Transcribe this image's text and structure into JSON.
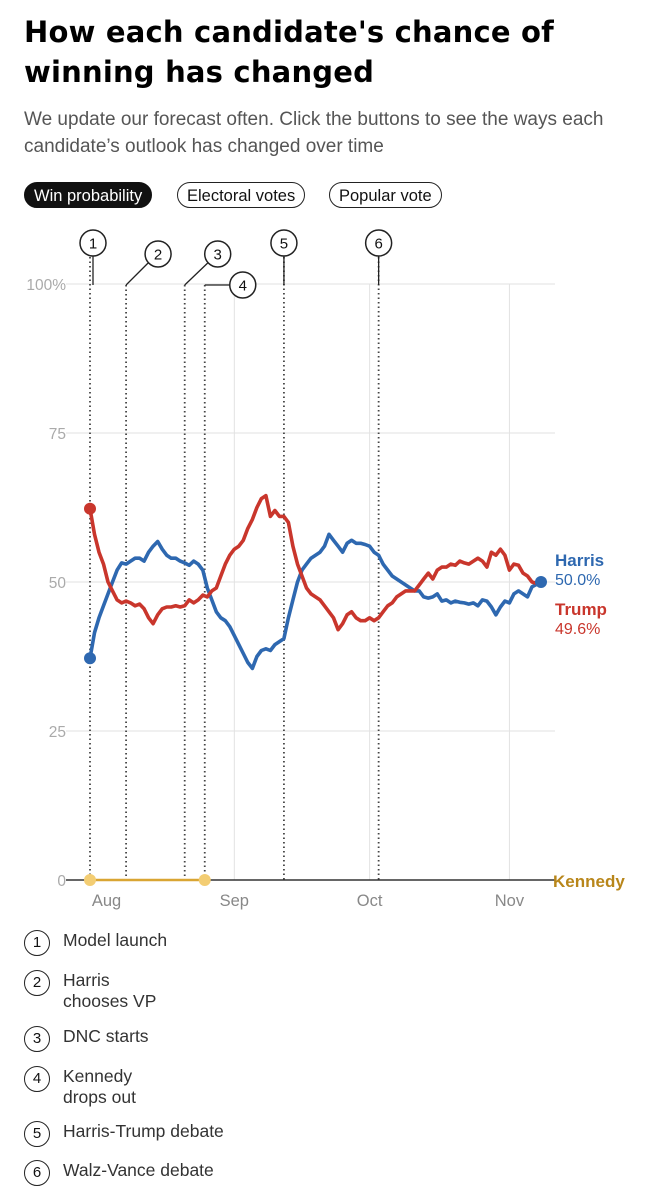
{
  "header": {
    "title": "How each candidate's chance of winning has changed",
    "subtitle": "We update our forecast often. Click the buttons to see the ways each candidate’s outlook has changed over time"
  },
  "tabs": [
    {
      "label": "Win probability",
      "active": true
    },
    {
      "label": "Electoral votes",
      "active": false
    },
    {
      "label": "Popular vote",
      "active": false
    }
  ],
  "chart_data": {
    "type": "line",
    "title": "How each candidate's chance of winning has changed",
    "x_unit": "days since Jul 31",
    "xlim": [
      0,
      104
    ],
    "ylim": [
      0,
      100
    ],
    "y_ticks": [
      {
        "value": 0,
        "label": "0"
      },
      {
        "value": 25,
        "label": "25"
      },
      {
        "value": 50,
        "label": "50"
      },
      {
        "value": 75,
        "label": "75"
      },
      {
        "value": 100,
        "label": "100%"
      }
    ],
    "x_ticks": [
      {
        "value": 1,
        "label": "Aug"
      },
      {
        "value": 32,
        "label": "Sep"
      },
      {
        "value": 62,
        "label": "Oct"
      },
      {
        "value": 93,
        "label": "Nov"
      }
    ],
    "grid": true,
    "series": [
      {
        "name": "Harris",
        "color": "#2e68b0",
        "end_label": "50.0%",
        "x": [
          0,
          1,
          2,
          3,
          4,
          5,
          6,
          7,
          8,
          9,
          10,
          11,
          12,
          13,
          14,
          15,
          16,
          17,
          18,
          19,
          20,
          21,
          22,
          23,
          24,
          25,
          26,
          27,
          28,
          29,
          30,
          31,
          32,
          33,
          34,
          35,
          36,
          37,
          38,
          39,
          40,
          41,
          42,
          43,
          44,
          45,
          46,
          47,
          48,
          49,
          50,
          51,
          52,
          53,
          54,
          55,
          56,
          57,
          58,
          59,
          60,
          61,
          62,
          63,
          64,
          65,
          66,
          67,
          68,
          69,
          70,
          71,
          72,
          73,
          74,
          75,
          76,
          77,
          78,
          79,
          80,
          81,
          82,
          83,
          84,
          85,
          86,
          87,
          88,
          89,
          90,
          91,
          92,
          93,
          94,
          95,
          96,
          97,
          98,
          99,
          100
        ],
        "values": [
          37.2,
          41.5,
          44,
          46,
          48,
          50,
          52,
          53.2,
          53,
          53.5,
          54,
          54,
          53.5,
          55,
          56,
          56.8,
          55.5,
          54.5,
          54,
          54,
          53.5,
          53.2,
          52.8,
          53.5,
          53,
          52,
          49,
          47,
          45,
          44,
          43.5,
          42.5,
          41,
          39.5,
          38,
          36.5,
          35.5,
          37.5,
          38.5,
          38.8,
          38.5,
          39.5,
          40,
          40.5,
          44,
          47,
          50,
          52,
          53,
          54,
          54.5,
          55,
          56,
          58,
          57,
          56,
          55,
          56.5,
          57,
          56.5,
          56.5,
          56.3,
          56,
          55,
          54.5,
          53,
          52,
          51,
          50.5,
          50,
          49.5,
          49,
          48.5,
          48.5,
          47.5,
          47.3,
          47.5,
          48,
          46.8,
          47,
          46.5,
          46.8,
          46.6,
          46.5,
          46.3,
          46.5,
          46,
          47,
          46.8,
          45.8,
          44.5,
          45.8,
          46.8,
          46.5,
          48,
          48.5,
          48,
          47.5,
          49.2,
          49.6,
          50
        ]
      },
      {
        "name": "Trump",
        "color": "#c9362c",
        "end_label": "49.6%",
        "x": [
          0,
          1,
          2,
          3,
          4,
          5,
          6,
          7,
          8,
          9,
          10,
          11,
          12,
          13,
          14,
          15,
          16,
          17,
          18,
          19,
          20,
          21,
          22,
          23,
          24,
          25,
          26,
          27,
          28,
          29,
          30,
          31,
          32,
          33,
          34,
          35,
          36,
          37,
          38,
          39,
          40,
          41,
          42,
          43,
          44,
          45,
          46,
          47,
          48,
          49,
          50,
          51,
          52,
          53,
          54,
          55,
          56,
          57,
          58,
          59,
          60,
          61,
          62,
          63,
          64,
          65,
          66,
          67,
          68,
          69,
          70,
          71,
          72,
          73,
          74,
          75,
          76,
          77,
          78,
          79,
          80,
          81,
          82,
          83,
          84,
          85,
          86,
          87,
          88,
          89,
          90,
          91,
          92,
          93,
          94,
          95,
          96,
          97,
          98,
          99,
          100
        ],
        "values": [
          62.3,
          58,
          55,
          53,
          50,
          48.5,
          47,
          46.5,
          46.8,
          46.5,
          46,
          46.3,
          45.5,
          44,
          43,
          44.5,
          45.5,
          45.8,
          45.8,
          46,
          45.8,
          46,
          47,
          46.5,
          47,
          47.8,
          47.5,
          48.5,
          49,
          51,
          53,
          54.5,
          55.5,
          56,
          57,
          59,
          60.5,
          62.5,
          64,
          64.5,
          61,
          62,
          61,
          61,
          60,
          56,
          53,
          51,
          49,
          48,
          47.5,
          47,
          46,
          45,
          44,
          42,
          43,
          44.5,
          45,
          44,
          43.5,
          43.5,
          44,
          43.5,
          44,
          45,
          46,
          46.5,
          47.5,
          48,
          48.5,
          48.5,
          48.5,
          49.5,
          50.5,
          51.5,
          50.5,
          52,
          52.5,
          52.5,
          53,
          52.8,
          53.5,
          53.2,
          53,
          53.5,
          54,
          53.5,
          52.5,
          55,
          54.5,
          55.5,
          54.5,
          52,
          53,
          52.8,
          51.5,
          51,
          50,
          49.8,
          49.6
        ]
      },
      {
        "name": "Kennedy",
        "color": "#d9a533",
        "end_label": "",
        "x": [
          0,
          25
        ],
        "values": [
          0,
          0
        ]
      }
    ],
    "events": [
      {
        "num": "1",
        "x": 0,
        "label": "Model launch"
      },
      {
        "num": "2",
        "x": 8,
        "label": "Harris chooses VP"
      },
      {
        "num": "3",
        "x": 21,
        "label": "DNC starts"
      },
      {
        "num": "4",
        "x": 25,
        "label": "Kennedy drops out"
      },
      {
        "num": "5",
        "x": 43,
        "label": "Harris-Trump debate"
      },
      {
        "num": "6",
        "x": 64,
        "label": "Walz-Vance debate"
      }
    ]
  },
  "legend": [
    {
      "num": "1",
      "label": "Model launch"
    },
    {
      "num": "2",
      "label": "Harris chooses VP"
    },
    {
      "num": "3",
      "label": "DNC starts"
    },
    {
      "num": "4",
      "label": "Kennedy drops out"
    },
    {
      "num": "5",
      "label": "Harris-Trump debate"
    },
    {
      "num": "6",
      "label": "Walz-Vance debate"
    }
  ]
}
